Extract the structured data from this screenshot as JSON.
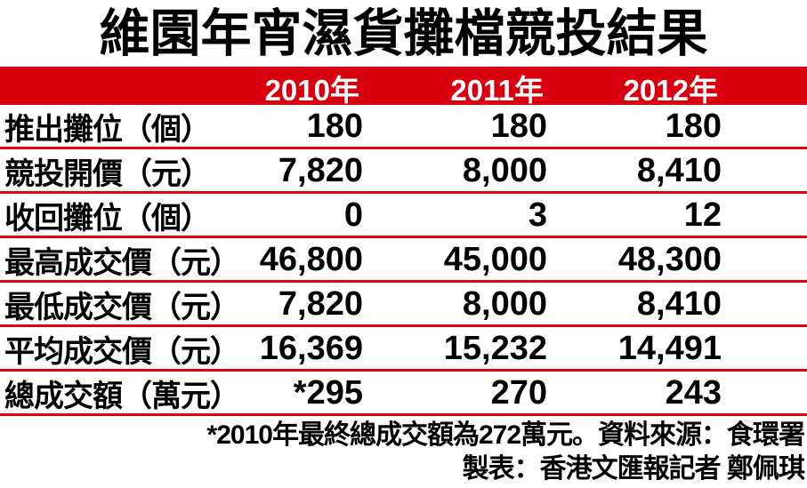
{
  "title": "維園年宵濕貨攤檔競投結果",
  "colors": {
    "accent_red": "#d8000f",
    "rule_red": "#e10010",
    "header_text": "#ffffff",
    "body_text": "#000000"
  },
  "table": {
    "header_years": [
      "2010年",
      "2011年",
      "2012年"
    ],
    "rows": [
      {
        "label": "推出攤位（個）",
        "values": [
          "180",
          "180",
          "180"
        ]
      },
      {
        "label": "競投開價（元）",
        "values": [
          "7,820",
          "8,000",
          "8,410"
        ]
      },
      {
        "label": "收回攤位（個）",
        "values": [
          "0",
          "3",
          "12"
        ]
      },
      {
        "label": "最高成交價（元）",
        "values": [
          "46,800",
          "45,000",
          "48,300"
        ]
      },
      {
        "label": "最低成交價（元）",
        "values": [
          "7,820",
          "8,000",
          "8,410"
        ]
      },
      {
        "label": "平均成交價（元）",
        "values": [
          "16,369",
          "15,232",
          "14,491"
        ]
      },
      {
        "label": "總成交額（萬元）",
        "values": [
          "*295",
          "270",
          "243"
        ]
      }
    ]
  },
  "footnotes": {
    "source": "*2010年最終總成交額為272萬元。資料來源：食環署",
    "credit": "製表：香港文匯報記者 鄭佩琪"
  },
  "chart_data": {
    "type": "table",
    "title": "維園年宵濕貨攤檔競投結果",
    "categories": [
      "2010年",
      "2011年",
      "2012年"
    ],
    "series": [
      {
        "name": "推出攤位（個）",
        "values": [
          180,
          180,
          180
        ]
      },
      {
        "name": "競投開價（元）",
        "values": [
          7820,
          8000,
          8410
        ]
      },
      {
        "name": "收回攤位（個）",
        "values": [
          0,
          3,
          12
        ]
      },
      {
        "name": "最高成交價（元）",
        "values": [
          46800,
          45000,
          48300
        ]
      },
      {
        "name": "最低成交價（元）",
        "values": [
          7820,
          8000,
          8410
        ]
      },
      {
        "name": "平均成交價（元）",
        "values": [
          16369,
          15232,
          14491
        ]
      },
      {
        "name": "總成交額（萬元）",
        "values": [
          295,
          270,
          243
        ]
      }
    ],
    "annotations": [
      "2010年總成交額顯示為 *295（最終總成交額為272萬元）",
      "資料來源：食環署",
      "製表：香港文匯報記者 鄭佩琪"
    ],
    "layout": {
      "header_background": "#d8000f",
      "row_separator": "red rule",
      "value_alignment": "right"
    }
  }
}
